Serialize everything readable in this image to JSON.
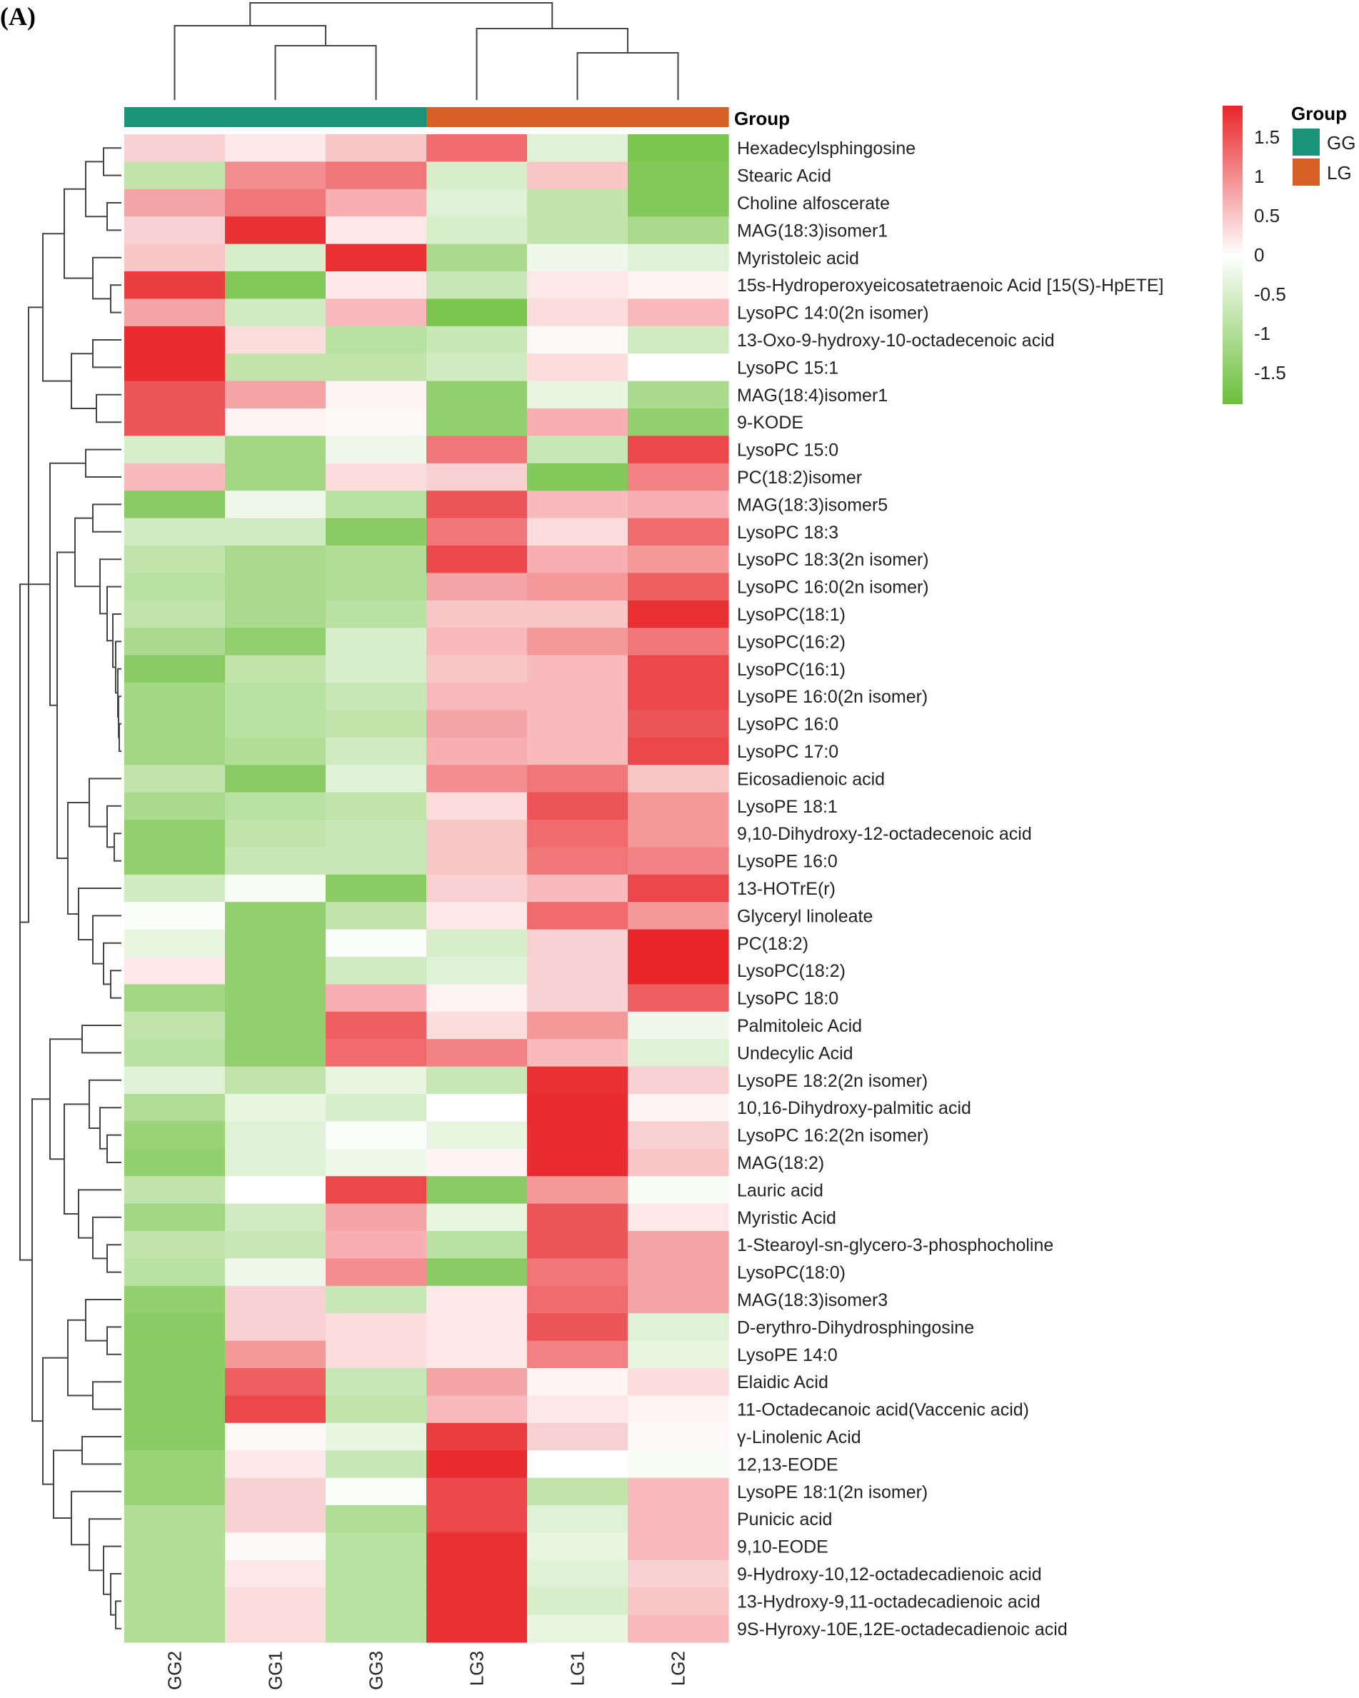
{
  "panel_label": "(A)",
  "chart_data": {
    "type": "heatmap",
    "columns": [
      "GG2",
      "GG1",
      "GG3",
      "LG3",
      "LG1",
      "LG2"
    ],
    "column_groups": [
      "GG",
      "GG",
      "GG",
      "LG",
      "LG",
      "LG"
    ],
    "group_annotation_label": "Group",
    "groups": [
      {
        "name": "GG",
        "color": "#1a9479"
      },
      {
        "name": "LG",
        "color": "#d55f25"
      }
    ],
    "rows": [
      "Hexadecylsphingosine",
      "Stearic Acid",
      "Choline alfoscerate",
      "MAG(18:3)isomer1",
      "Myristoleic acid",
      "15s-Hydroperoxyeicosatetraenoic Acid [15(S)-HpETE]",
      "LysoPC 14:0(2n isomer)",
      "13-Oxo-9-hydroxy-10-octadecenoic acid",
      "LysoPC 15:1",
      "MAG(18:4)isomer1",
      "9-KODE",
      "LysoPC 15:0",
      "PC(18:2)isomer",
      "MAG(18:3)isomer5",
      "LysoPC 18:3",
      "LysoPC 18:3(2n isomer)",
      "LysoPC 16:0(2n isomer)",
      "LysoPC(18:1)",
      "LysoPC(16:2)",
      "LysoPC(16:1)",
      "LysoPE 16:0(2n isomer)",
      "LysoPC 16:0",
      "LysoPC 17:0",
      "Eicosadienoic acid",
      "LysoPE 18:1",
      "9,10-Dihydroxy-12-octadecenoic acid",
      "LysoPE 16:0",
      "13-HOTrE(r)",
      "Glyceryl linoleate",
      "PC(18:2)",
      "LysoPC(18:2)",
      "LysoPC 18:0",
      "Palmitoleic Acid",
      "Undecylic Acid",
      "LysoPE 18:2(2n isomer)",
      "10,16-Dihydroxy-palmitic acid",
      "LysoPC 16:2(2n isomer)",
      "MAG(18:2)",
      "Lauric acid",
      "Myristic Acid",
      "1-Stearoyl-sn-glycero-3-phosphocholine",
      "LysoPC(18:0)",
      "MAG(18:3)isomer3",
      "D-erythro-Dihydrosphingosine",
      "LysoPE 14:0",
      "Elaidic Acid",
      "11-Octadecanoic acid(Vaccenic acid)",
      "γ-Linolenic Acid",
      "12,13-EODE",
      "LysoPE 18:1(2n isomer)",
      "Punicic acid",
      "9,10-EODE",
      "9-Hydroxy-10,12-octadecadienoic acid",
      "13-Hydroxy-9,11-octadecadienoic acid",
      "9S-Hyroxy-10E,12E-octadecadienoic acid"
    ],
    "values": [
      [
        0.4,
        0.2,
        0.5,
        1.3,
        -0.4,
        -1.7
      ],
      [
        -0.8,
        1.0,
        1.2,
        -0.5,
        0.5,
        -1.6
      ],
      [
        0.8,
        1.2,
        0.7,
        -0.4,
        -0.8,
        -1.6
      ],
      [
        0.4,
        1.8,
        0.2,
        -0.5,
        -0.8,
        -1.1
      ],
      [
        0.5,
        -0.5,
        1.8,
        -1.1,
        -0.2,
        -0.4
      ],
      [
        1.7,
        -1.6,
        0.2,
        -0.7,
        0.2,
        0.1
      ],
      [
        0.8,
        -0.6,
        0.6,
        -1.7,
        0.3,
        0.6
      ],
      [
        1.85,
        0.3,
        -0.9,
        -0.7,
        0.05,
        -0.6
      ],
      [
        1.85,
        -0.8,
        -0.8,
        -0.6,
        0.3,
        0.0
      ],
      [
        1.5,
        0.8,
        0.1,
        -1.4,
        -0.3,
        -1.1
      ],
      [
        1.5,
        0.1,
        0.05,
        -1.4,
        0.7,
        -1.4
      ],
      [
        -0.5,
        -1.2,
        -0.2,
        1.2,
        -0.7,
        1.6
      ],
      [
        0.6,
        -1.2,
        0.3,
        0.4,
        -1.6,
        1.1
      ],
      [
        -1.5,
        -0.2,
        -0.9,
        1.5,
        0.6,
        0.7
      ],
      [
        -0.6,
        -0.6,
        -1.5,
        1.2,
        0.3,
        1.3
      ],
      [
        -0.8,
        -1.1,
        -1.0,
        1.6,
        0.7,
        0.9
      ],
      [
        -0.9,
        -1.1,
        -1.0,
        0.8,
        0.9,
        1.4
      ],
      [
        -0.8,
        -1.1,
        -0.9,
        0.5,
        0.5,
        1.8
      ],
      [
        -1.1,
        -1.4,
        -0.5,
        0.6,
        0.9,
        1.2
      ],
      [
        -1.5,
        -0.8,
        -0.5,
        0.5,
        0.6,
        1.6
      ],
      [
        -1.2,
        -0.9,
        -0.7,
        0.6,
        0.6,
        1.6
      ],
      [
        -1.2,
        -0.9,
        -0.8,
        0.8,
        0.6,
        1.5
      ],
      [
        -1.2,
        -1.0,
        -0.6,
        0.7,
        0.6,
        1.6
      ],
      [
        -0.8,
        -1.5,
        -0.4,
        1.0,
        1.2,
        0.5
      ],
      [
        -1.1,
        -0.9,
        -0.8,
        0.3,
        1.5,
        0.9
      ],
      [
        -1.4,
        -0.8,
        -0.7,
        0.5,
        1.3,
        0.9
      ],
      [
        -1.4,
        -0.7,
        -0.7,
        0.5,
        1.2,
        1.1
      ],
      [
        -0.6,
        -0.1,
        -1.5,
        0.4,
        0.6,
        1.6
      ],
      [
        -0.05,
        -1.4,
        -0.8,
        0.2,
        1.3,
        0.9
      ],
      [
        -0.3,
        -1.4,
        -0.05,
        -0.5,
        0.4,
        1.9
      ],
      [
        0.2,
        -1.4,
        -0.6,
        -0.4,
        0.4,
        1.9
      ],
      [
        -1.2,
        -1.4,
        0.7,
        0.1,
        0.4,
        1.4
      ],
      [
        -0.8,
        -1.4,
        1.4,
        0.3,
        0.9,
        -0.2
      ],
      [
        -0.9,
        -1.4,
        1.3,
        1.1,
        0.6,
        -0.4
      ],
      [
        -0.4,
        -0.8,
        -0.3,
        -0.7,
        1.8,
        0.4
      ],
      [
        -1.0,
        -0.3,
        -0.5,
        0.0,
        1.85,
        0.1
      ],
      [
        -1.3,
        -0.4,
        -0.05,
        -0.3,
        1.85,
        0.4
      ],
      [
        -1.4,
        -0.4,
        -0.2,
        0.1,
        1.85,
        0.5
      ],
      [
        -0.8,
        0.0,
        1.6,
        -1.5,
        0.9,
        -0.1
      ],
      [
        -1.2,
        -0.6,
        0.8,
        -0.3,
        1.5,
        0.2
      ],
      [
        -0.8,
        -0.7,
        0.7,
        -0.9,
        1.5,
        0.8
      ],
      [
        -0.9,
        -0.2,
        1.0,
        -1.5,
        1.2,
        0.8
      ],
      [
        -1.4,
        0.4,
        -0.7,
        0.2,
        1.3,
        0.8
      ],
      [
        -1.5,
        0.4,
        0.3,
        0.2,
        1.5,
        -0.4
      ],
      [
        -1.5,
        0.9,
        0.3,
        0.2,
        1.1,
        -0.3
      ],
      [
        -1.5,
        1.4,
        -0.7,
        0.8,
        0.1,
        0.3
      ],
      [
        -1.5,
        1.6,
        -0.8,
        0.6,
        0.2,
        0.1
      ],
      [
        -1.5,
        0.05,
        -0.3,
        1.7,
        0.4,
        0.05
      ],
      [
        -1.3,
        0.2,
        -0.7,
        1.85,
        0.0,
        -0.1
      ],
      [
        -1.3,
        0.4,
        -0.05,
        1.6,
        -0.8,
        0.6
      ],
      [
        -1.0,
        0.4,
        -1.0,
        1.6,
        -0.4,
        0.6
      ],
      [
        -1.0,
        0.05,
        -0.9,
        1.8,
        -0.3,
        0.6
      ],
      [
        -1.0,
        0.2,
        -0.9,
        1.8,
        -0.4,
        0.4
      ],
      [
        -1.0,
        0.3,
        -0.9,
        1.8,
        -0.5,
        0.5
      ],
      [
        -1.0,
        0.3,
        -0.9,
        1.8,
        -0.3,
        0.6
      ]
    ],
    "color_scale": {
      "min": -1.9,
      "max": 1.9,
      "low_color": "#6bbf3a",
      "mid_color": "#ffffff",
      "high_color": "#e8262a",
      "ticks": [
        "1.5",
        "1",
        "0.5",
        "0",
        "-0.5",
        "-1",
        "-1.5"
      ],
      "tick_values": [
        1.5,
        1,
        0.5,
        0,
        -0.5,
        -1,
        -1.5
      ]
    },
    "legend_title": "Group",
    "legend_placement": "top-right",
    "grid": false
  }
}
